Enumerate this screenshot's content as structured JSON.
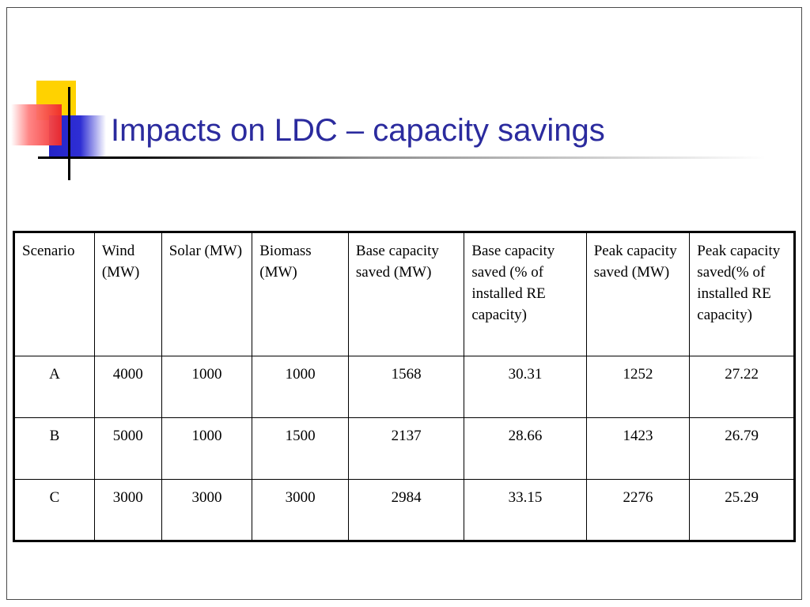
{
  "slide": {
    "title": "Impacts on LDC – capacity savings"
  },
  "table": {
    "headers": [
      "Scenario",
      "Wind (MW)",
      "Solar (MW)",
      "Biomass (MW)",
      "Base capacity saved (MW)",
      "Base capacity saved (% of installed RE capacity)",
      "Peak capacity saved (MW)",
      "Peak capacity saved(% of installed RE capacity)"
    ],
    "rows": [
      [
        "A",
        "4000",
        "1000",
        "1000",
        "1568",
        "30.31",
        "1252",
        "27.22"
      ],
      [
        "B",
        "5000",
        "1000",
        "1500",
        "2137",
        "28.66",
        "1423",
        "26.79"
      ],
      [
        "C",
        "3000",
        "3000",
        "3000",
        "2984",
        "33.15",
        "2276",
        "25.29"
      ]
    ]
  },
  "colors": {
    "title": "#2b2b9e",
    "deco_yellow": "#ffd200",
    "deco_blue": "#2424c8",
    "deco_red": "#f02828"
  }
}
